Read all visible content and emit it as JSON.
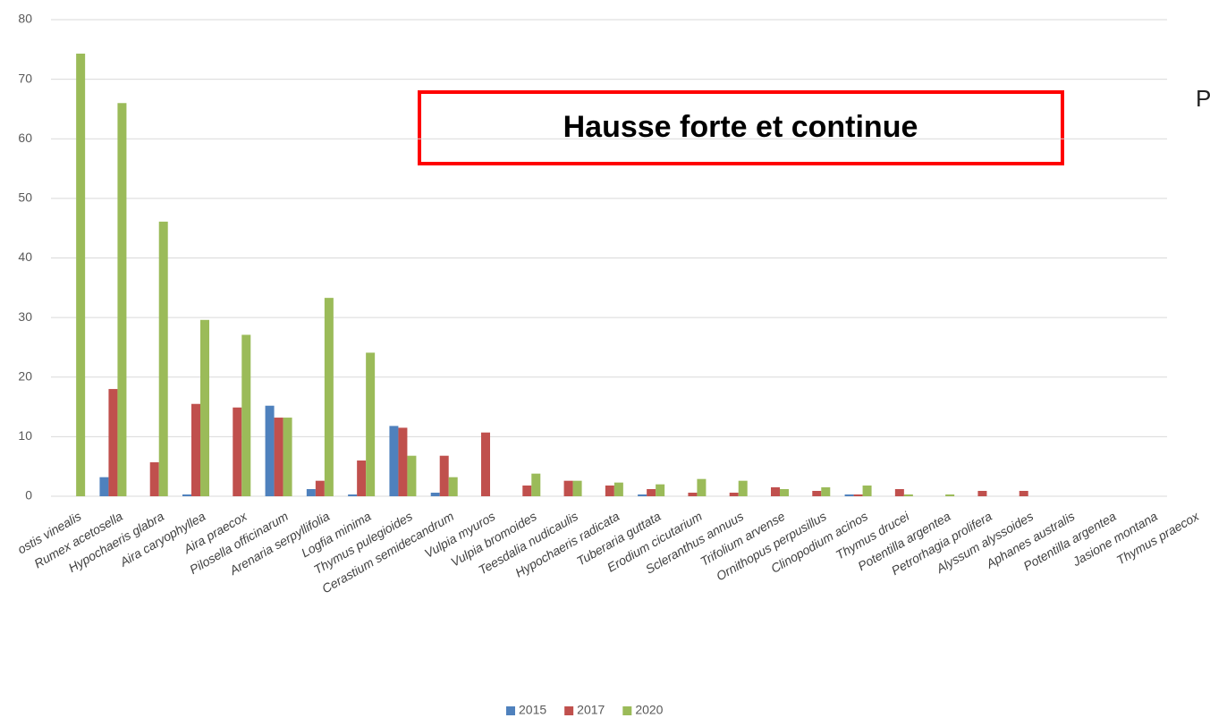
{
  "chart_data": {
    "type": "bar",
    "annotations": [
      "Hausse forte et continue",
      "P"
    ],
    "categories": [
      "ostis vinealis",
      "Rumex acetosella",
      "Hypochaeris glabra",
      "Aira caryophyllea",
      "Aira praecox",
      "Pilosella officinarum",
      "Arenaria serpyllifolia",
      "Logfia minima",
      "Thymus pulegioides",
      "Cerastium semidecandrum",
      "Vulpia myuros",
      "Vulpia bromoides",
      "Teesdalia nudicaulis",
      "Hypochaeris radicata",
      "Tuberaria guttata",
      "Erodium cicutarium",
      "Scleranthus annuus",
      "Trifolium arvense",
      "Ornithopus perpusillus",
      "Clinopodium acinos",
      "Thymus drucei",
      "Potentilla argentea",
      "Petrorhagia prolifera",
      "Alyssum alyssoides",
      "Aphanes australis",
      "Potentilla argentea",
      "Jasione montana",
      "Thymus praecox"
    ],
    "series": [
      {
        "name": "2015",
        "color": "#4f81bd",
        "values": [
          0,
          3.2,
          0,
          0.3,
          0,
          15.2,
          1.2,
          0.3,
          11.8,
          0.6,
          0,
          0,
          0,
          0,
          0.3,
          0,
          0,
          0,
          0,
          0.3,
          0,
          0,
          0,
          0,
          0,
          0,
          0,
          0
        ]
      },
      {
        "name": "2017",
        "color": "#c0504d",
        "values": [
          0,
          18,
          5.7,
          15.5,
          14.9,
          13.2,
          2.6,
          6,
          11.5,
          6.8,
          10.7,
          1.8,
          2.6,
          1.8,
          1.2,
          0.6,
          0.6,
          1.5,
          0.9,
          0.3,
          1.2,
          0,
          0.9,
          0.9,
          0,
          0,
          0,
          0
        ]
      },
      {
        "name": "2020",
        "color": "#9bbb59",
        "values": [
          74.3,
          66,
          46.1,
          29.6,
          27.1,
          13.2,
          33.3,
          24.1,
          6.8,
          3.2,
          0,
          3.8,
          2.6,
          2.3,
          2,
          2.9,
          2.6,
          1.2,
          1.5,
          1.8,
          0.3,
          0.3,
          0,
          0,
          0,
          0,
          0,
          0
        ]
      }
    ],
    "ylim": [
      0,
      80
    ],
    "yticks": [
      0,
      10,
      20,
      30,
      40,
      50,
      60,
      70,
      80
    ],
    "grid": true,
    "legend": "bottom"
  }
}
